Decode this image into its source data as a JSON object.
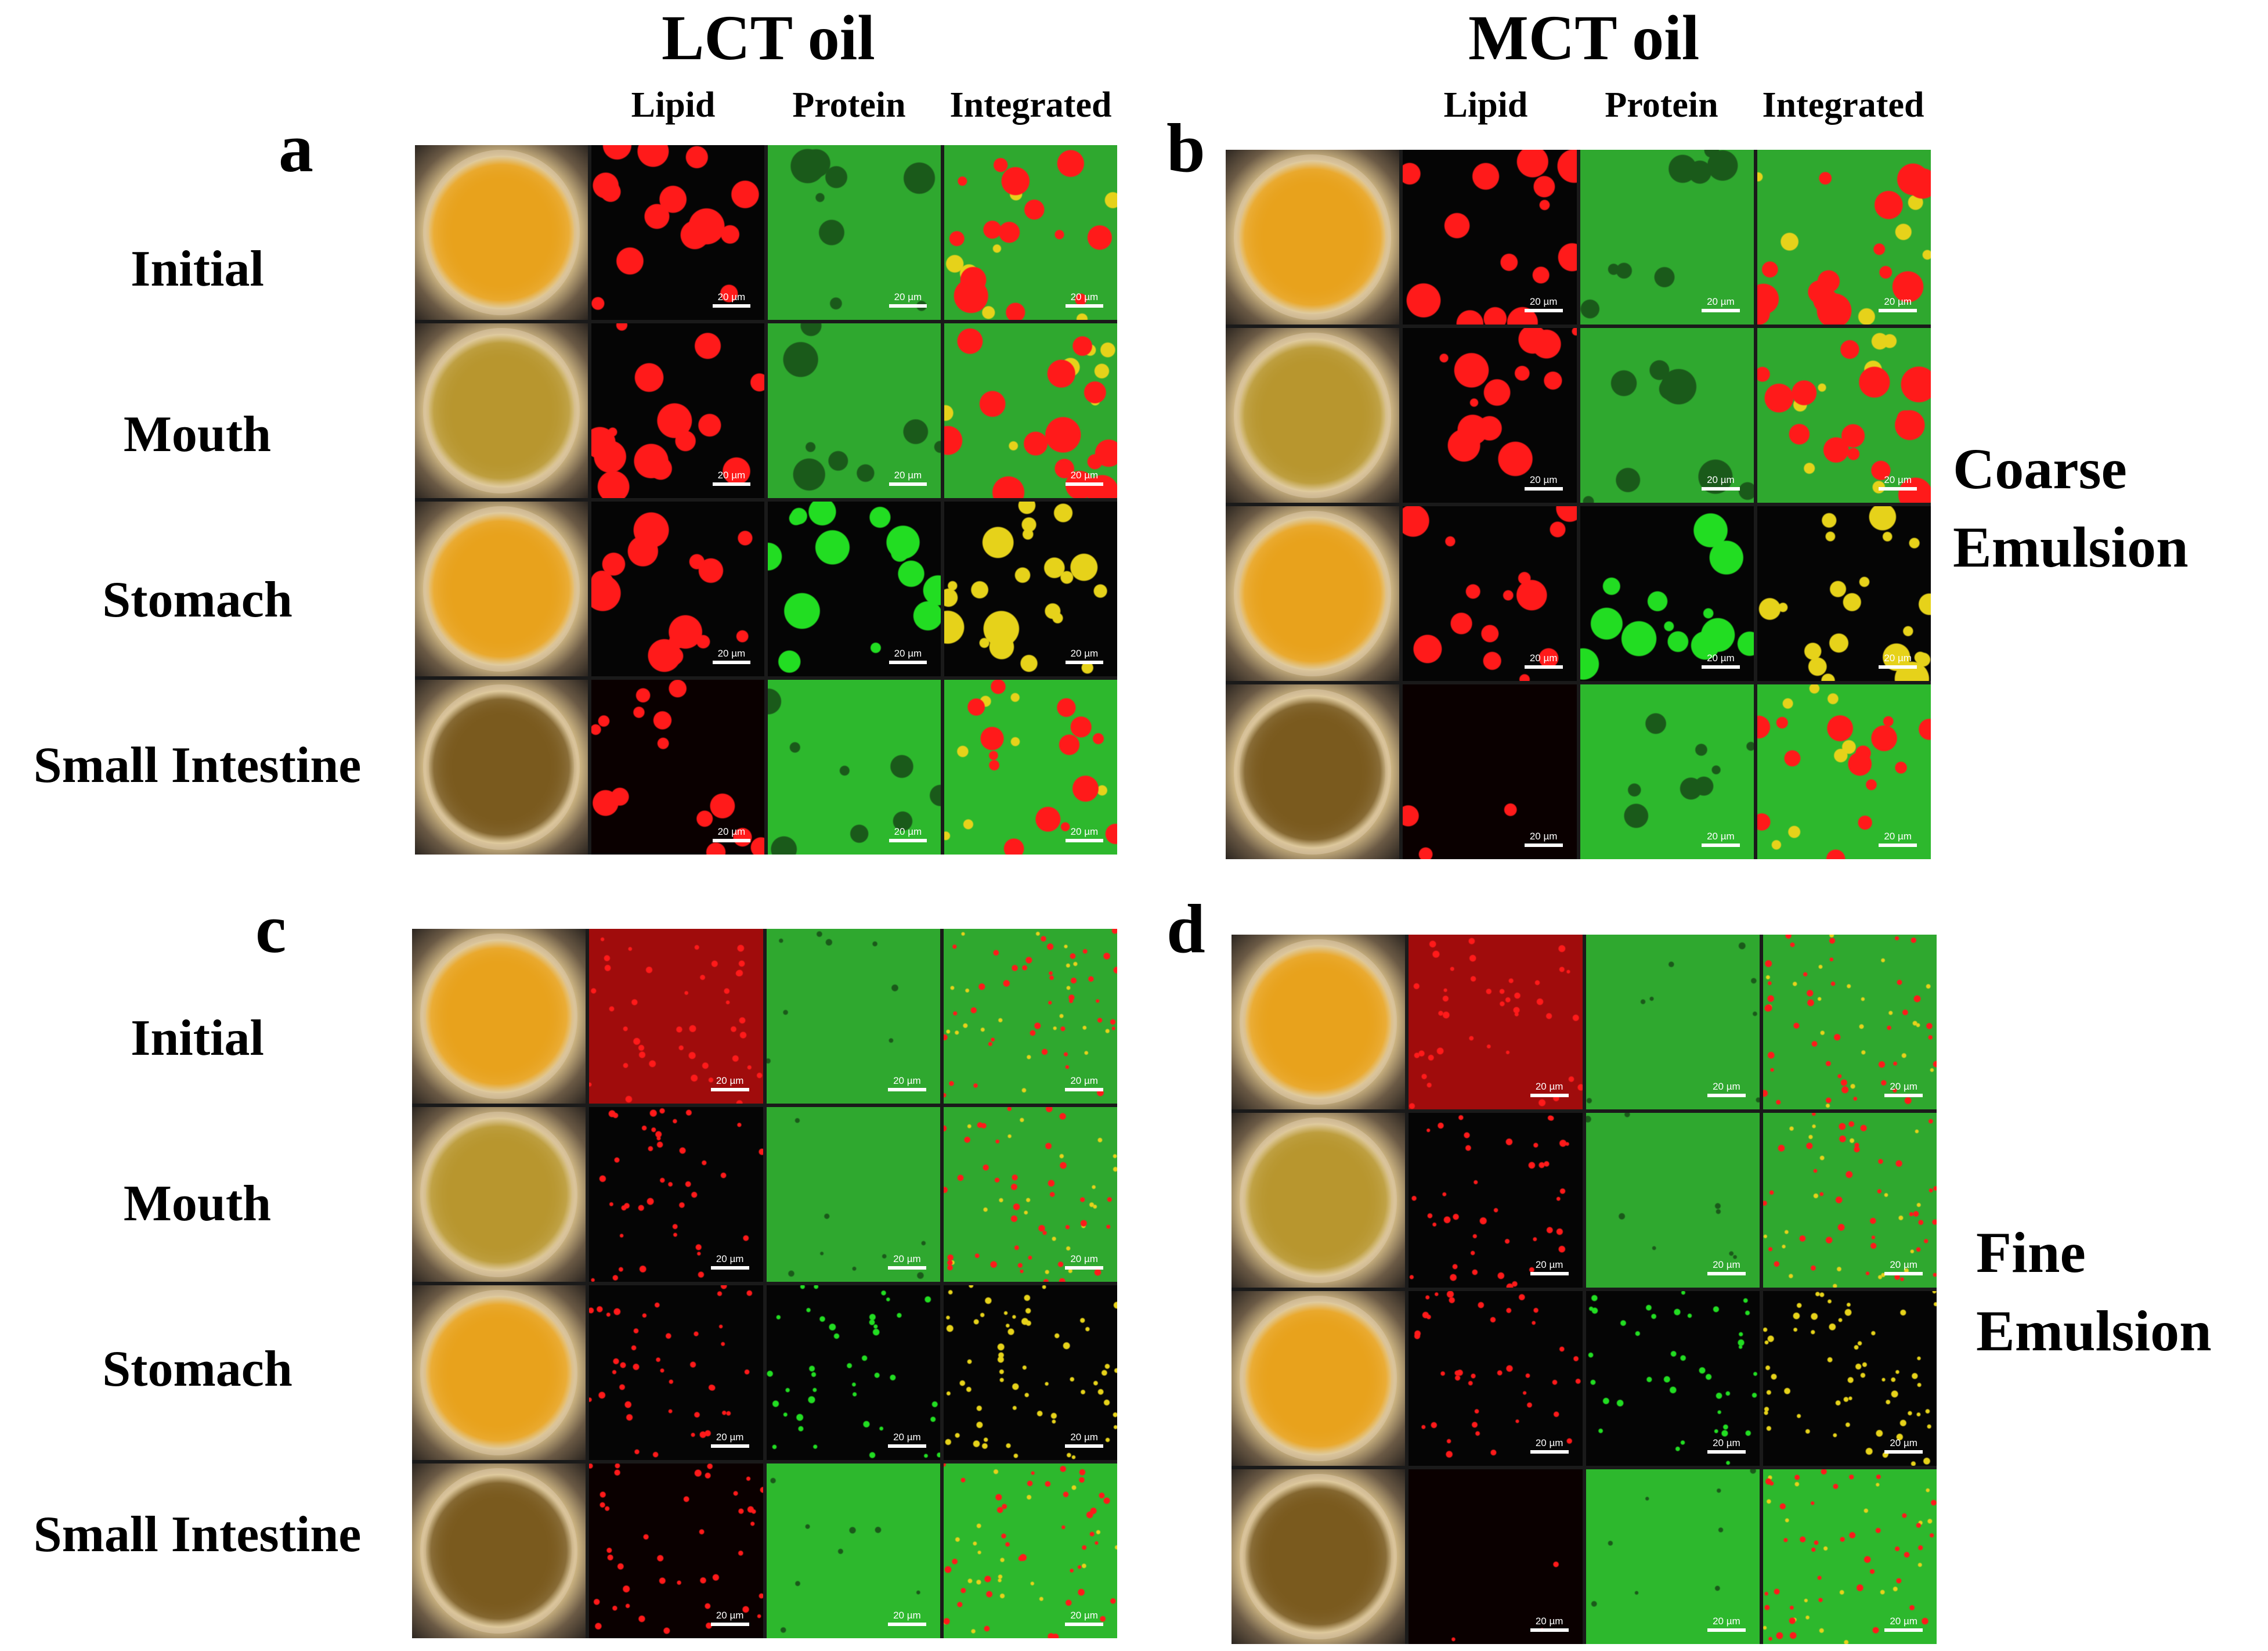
{
  "headers": {
    "lct": "LCT oil",
    "mct": "MCT oil",
    "channels": [
      "Lipid",
      "Protein",
      "Integrated"
    ]
  },
  "panels": [
    {
      "letter": "a",
      "oil": "LCT",
      "emulsion": "coarse"
    },
    {
      "letter": "b",
      "oil": "MCT",
      "emulsion": "coarse"
    },
    {
      "letter": "c",
      "oil": "LCT",
      "emulsion": "fine"
    },
    {
      "letter": "d",
      "oil": "MCT",
      "emulsion": "fine"
    }
  ],
  "stages": [
    "Initial",
    "Mouth",
    "Stomach",
    "Small Intestine"
  ],
  "emulsions": {
    "coarse": [
      "Coarse",
      "Emulsion"
    ],
    "fine": [
      "Fine",
      "Emulsion"
    ]
  },
  "scale_bar_label": "20 µm",
  "colors": {
    "lipid": "#ff1a1a",
    "protein": "#22dd22",
    "overlap": "#e6d21a",
    "photo_yellow": "#e8a21c",
    "photo_brown": "#7a5a1e"
  }
}
